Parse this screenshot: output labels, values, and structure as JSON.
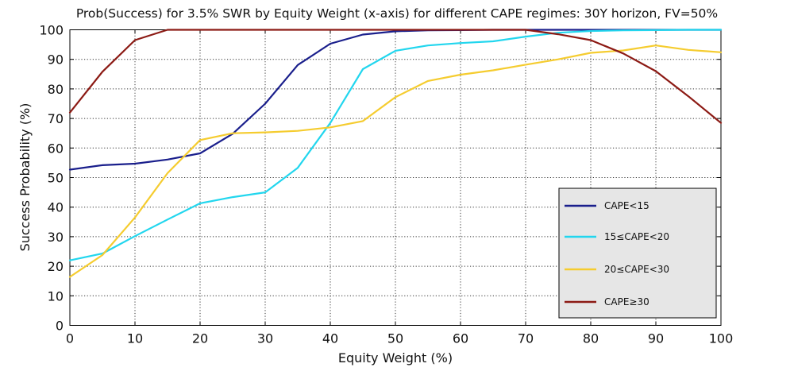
{
  "chart_data": {
    "type": "line",
    "title": "Prob(Success) for 3.5% SWR by Equity Weight (x-axis) for different CAPE regimes: 30Y horizon, FV=50%",
    "xlabel": "Equity Weight (%)",
    "ylabel": "Success Probability (%)",
    "xlim": [
      0,
      100
    ],
    "ylim": [
      0,
      100
    ],
    "xticks": [
      0,
      10,
      20,
      30,
      40,
      50,
      60,
      70,
      80,
      90,
      100
    ],
    "yticks": [
      0,
      10,
      20,
      30,
      40,
      50,
      60,
      70,
      80,
      90,
      100
    ],
    "grid": true,
    "legend_position": "lower-right",
    "x": [
      0,
      5,
      10,
      15,
      20,
      25,
      30,
      35,
      40,
      45,
      50,
      55,
      60,
      65,
      70,
      75,
      80,
      85,
      90,
      95,
      100
    ],
    "series": [
      {
        "name": "CAPE<15",
        "color": "#1a1f8c",
        "values": [
          52.7,
          54.2,
          54.7,
          56.1,
          58.2,
          64.8,
          75.0,
          88.1,
          95.3,
          98.4,
          99.5,
          99.8,
          99.9,
          100,
          100,
          100,
          100,
          100,
          100,
          100,
          100
        ]
      },
      {
        "name": "15≤CAPE<20",
        "color": "#22d6ee",
        "values": [
          22.0,
          24.3,
          30.2,
          35.8,
          41.3,
          43.4,
          45.0,
          53.3,
          68.5,
          86.7,
          92.9,
          94.7,
          95.5,
          96.1,
          97.7,
          99.0,
          99.6,
          99.8,
          99.9,
          100,
          100
        ]
      },
      {
        "name": "20≤CAPE<30",
        "color": "#f5cc2f",
        "values": [
          16.4,
          23.8,
          36.5,
          51.5,
          62.7,
          65.0,
          65.3,
          65.8,
          67.0,
          69.1,
          77.2,
          82.7,
          84.8,
          86.3,
          88.2,
          90.0,
          92.2,
          93.0,
          94.7,
          93.2,
          92.4
        ]
      },
      {
        "name": "CAPE≥30",
        "color": "#8c1a14",
        "values": [
          72.0,
          85.8,
          96.5,
          100,
          100,
          100,
          100,
          100,
          100,
          100,
          100,
          100,
          100,
          100,
          100,
          98.5,
          96.5,
          92.0,
          86.0,
          77.5,
          68.5
        ]
      }
    ]
  }
}
